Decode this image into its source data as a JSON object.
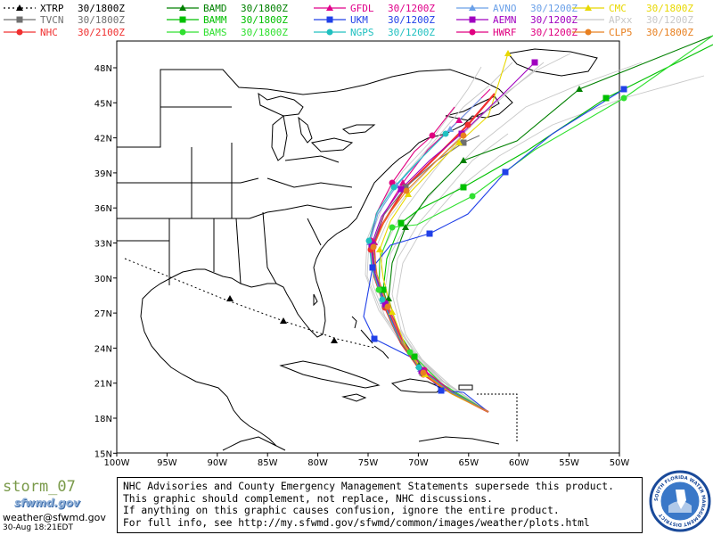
{
  "legend": [
    {
      "name": "XTRP",
      "time": "30/1800Z",
      "color": "#000000",
      "marker": "triangle",
      "dashed": true
    },
    {
      "name": "BAMD",
      "time": "30/1800Z",
      "color": "#008000",
      "marker": "triangle",
      "dashed": false
    },
    {
      "name": "GFDL",
      "time": "30/1200Z",
      "color": "#e0008a",
      "marker": "triangle",
      "dashed": false
    },
    {
      "name": "AVNO",
      "time": "30/1200Z",
      "color": "#6aa0e8",
      "marker": "triangle",
      "dashed": false
    },
    {
      "name": "CMC",
      "time": "30/1800Z",
      "color": "#e8d800",
      "marker": "triangle",
      "dashed": false
    },
    {
      "name": "TVCN",
      "time": "30/1800Z",
      "color": "#707070",
      "marker": "square",
      "dashed": false
    },
    {
      "name": "BAMM",
      "time": "30/1800Z",
      "color": "#00c000",
      "marker": "square",
      "dashed": false
    },
    {
      "name": "UKM",
      "time": "30/1200Z",
      "color": "#2040e8",
      "marker": "square",
      "dashed": false
    },
    {
      "name": "AEMN",
      "time": "30/1200Z",
      "color": "#a000c0",
      "marker": "square",
      "dashed": false
    },
    {
      "name": "APxx",
      "time": "30/1200Z",
      "color": "#c8c8c8",
      "marker": "none",
      "dashed": false
    },
    {
      "name": "NHC",
      "time": "30/2100Z",
      "color": "#f03030",
      "marker": "circle",
      "dashed": false
    },
    {
      "name": "BAMS",
      "time": "30/1800Z",
      "color": "#30e030",
      "marker": "circle",
      "dashed": false
    },
    {
      "name": "NGPS",
      "time": "30/1200Z",
      "color": "#20c0c0",
      "marker": "circle",
      "dashed": false
    },
    {
      "name": "HWRF",
      "time": "30/1200Z",
      "color": "#e00080",
      "marker": "circle",
      "dashed": false
    },
    {
      "name": "CLP5",
      "time": "30/1800Z",
      "color": "#e88020",
      "marker": "circle",
      "dashed": false
    }
  ],
  "axes": {
    "lat_labels": [
      "48N",
      "45N",
      "42N",
      "39N",
      "36N",
      "33N",
      "30N",
      "27N",
      "24N",
      "21N",
      "18N",
      "15N"
    ],
    "lon_labels": [
      "100W",
      "95W",
      "90W",
      "85W",
      "80W",
      "75W",
      "70W",
      "65W",
      "60W",
      "55W",
      "50W"
    ]
  },
  "footer": {
    "storm_name": "storm_07",
    "logo_text": "sfwmd.gov",
    "email": "weather@sfwmd.gov",
    "timestamp": "30-Aug 18:21EDT"
  },
  "disclaimer": [
    "NHC Advisories and County Emergency Management Statements supersede this product.",
    "This graphic should complement, not replace, NHC discussions.",
    "If anything on this graphic causes confusion, ignore the entire product.",
    "For full info, see  http://my.sfwmd.gov/sfwmd/common/images/weather/plots.html"
  ],
  "seal_text": "SOUTH FLORIDA WATER MANAGEMENT DISTRICT"
}
